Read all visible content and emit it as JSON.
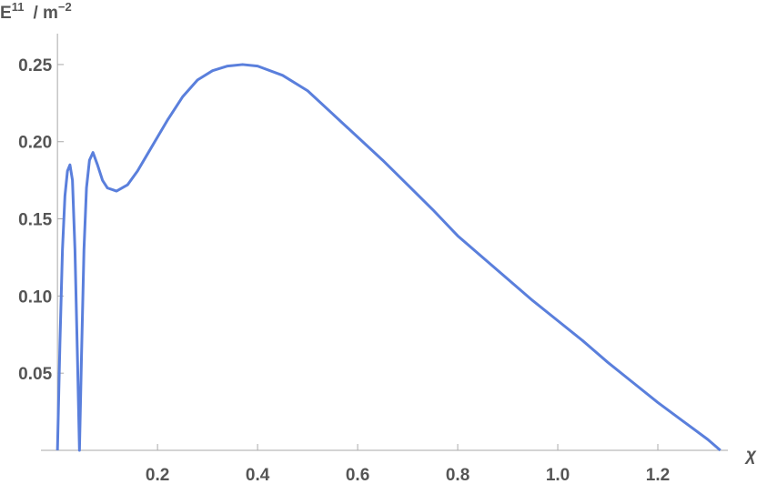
{
  "chart_data": {
    "type": "line",
    "ylabel": "E",
    "ylabel_superscript": "11",
    "ylabel_unit": "/ m",
    "ylabel_unit_superscript": "−2",
    "xlabel": "χ",
    "x": [
      0,
      0.005,
      0.01,
      0.015,
      0.02,
      0.025,
      0.03,
      0.035,
      0.04,
      0.044,
      0.048,
      0.053,
      0.058,
      0.064,
      0.071,
      0.08,
      0.09,
      0.1,
      0.118,
      0.14,
      0.16,
      0.18,
      0.2,
      0.22,
      0.25,
      0.28,
      0.31,
      0.34,
      0.37,
      0.4,
      0.45,
      0.5,
      0.55,
      0.6,
      0.65,
      0.7,
      0.75,
      0.8,
      0.85,
      0.9,
      0.95,
      1.0,
      1.05,
      1.1,
      1.15,
      1.2,
      1.25,
      1.3,
      1.325
    ],
    "series": [
      {
        "color": "#5a7fdc",
        "values": [
          0,
          0.07,
          0.13,
          0.165,
          0.181,
          0.185,
          0.175,
          0.13,
          0.06,
          0,
          0.06,
          0.13,
          0.17,
          0.188,
          0.193,
          0.185,
          0.175,
          0.17,
          0.168,
          0.172,
          0.181,
          0.192,
          0.203,
          0.214,
          0.229,
          0.24,
          0.246,
          0.249,
          0.25,
          0.249,
          0.243,
          0.233,
          0.218,
          0.203,
          0.188,
          0.172,
          0.156,
          0.139,
          0.125,
          0.111,
          0.097,
          0.084,
          0.071,
          0.057,
          0.044,
          0.031,
          0.019,
          0.007,
          0
        ]
      }
    ],
    "xlim": [
      -0.033,
      1.34
    ],
    "ylim": [
      0,
      0.27
    ],
    "xticks": [
      0.2,
      0.4,
      0.6,
      0.8,
      {
        "value": 1,
        "label": "1.0"
      },
      1.2
    ],
    "yticks": [
      0.05,
      {
        "value": 0.1,
        "label": "0.10"
      },
      {
        "value": 0.15,
        "label": "0.15"
      },
      {
        "value": 0.2,
        "label": "0.20"
      },
      0.25
    ]
  }
}
